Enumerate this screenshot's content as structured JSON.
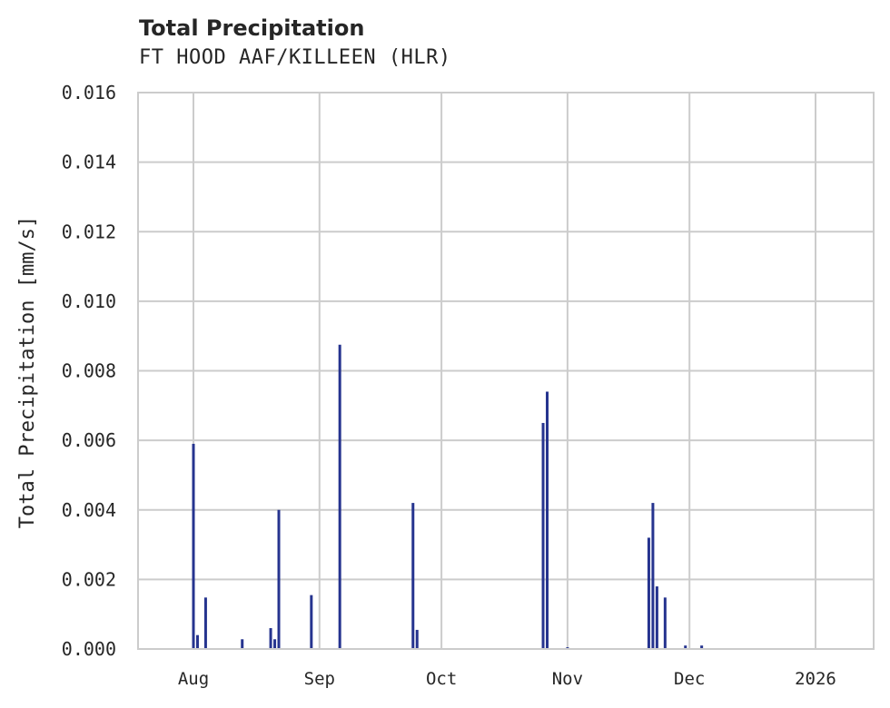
{
  "chart_data": {
    "type": "bar",
    "title": "Total Precipitation",
    "subtitle": "FT HOOD AAF/KILLEEN (HLR)",
    "xlabel": "",
    "ylabel": "Total Precipitation [mm/s]",
    "ylim": [
      0,
      0.016
    ],
    "yticks": [
      "0.000",
      "0.002",
      "0.004",
      "0.006",
      "0.008",
      "0.010",
      "0.012",
      "0.014",
      "0.016"
    ],
    "xticks": [
      "Aug",
      "Sep",
      "Oct",
      "Nov",
      "Dec",
      "2026"
    ],
    "grid": true,
    "legend": null,
    "color": "#26348f",
    "points": [
      {
        "date": "2025-08-01",
        "value": 0.0059
      },
      {
        "date": "2025-08-02",
        "value": 0.0004
      },
      {
        "date": "2025-08-04",
        "value": 0.00148
      },
      {
        "date": "2025-08-13",
        "value": 0.00028
      },
      {
        "date": "2025-08-20",
        "value": 0.0006
      },
      {
        "date": "2025-08-21",
        "value": 0.00028
      },
      {
        "date": "2025-08-22",
        "value": 0.004
      },
      {
        "date": "2025-08-30",
        "value": 0.00155
      },
      {
        "date": "2025-09-06",
        "value": 0.00875
      },
      {
        "date": "2025-09-24",
        "value": 0.0042
      },
      {
        "date": "2025-09-25",
        "value": 0.00055
      },
      {
        "date": "2025-10-26",
        "value": 0.0065
      },
      {
        "date": "2025-10-27",
        "value": 0.0074
      },
      {
        "date": "2025-11-01",
        "value": 5e-05
      },
      {
        "date": "2025-11-21",
        "value": 0.0032
      },
      {
        "date": "2025-11-22",
        "value": 0.0042
      },
      {
        "date": "2025-11-23",
        "value": 0.0018
      },
      {
        "date": "2025-11-25",
        "value": 0.00148
      },
      {
        "date": "2025-11-30",
        "value": 0.0001
      },
      {
        "date": "2025-12-04",
        "value": 0.0001
      }
    ]
  }
}
